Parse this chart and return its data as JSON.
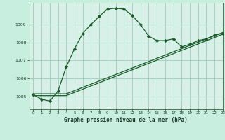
{
  "title": "Graphe pression niveau de la mer (hPa)",
  "background_color": "#c8eee0",
  "plot_bg_color": "#d8f0e8",
  "grid_color": "#99ccbb",
  "line_color": "#1a5c2a",
  "xlim": [
    -0.5,
    23
  ],
  "ylim": [
    1004.3,
    1010.2
  ],
  "xticks": [
    0,
    1,
    2,
    3,
    4,
    5,
    6,
    7,
    8,
    9,
    10,
    11,
    12,
    13,
    14,
    15,
    16,
    17,
    18,
    19,
    20,
    21,
    22,
    23
  ],
  "yticks": [
    1005,
    1006,
    1007,
    1008,
    1009
  ],
  "series1_x": [
    0,
    1,
    2,
    3,
    4,
    5,
    6,
    7,
    8,
    9,
    10,
    11,
    12,
    13,
    14,
    15,
    16,
    17,
    18,
    19,
    20,
    21,
    22,
    23
  ],
  "series1_y": [
    1005.1,
    1004.85,
    1004.75,
    1005.3,
    1006.65,
    1007.65,
    1008.5,
    1009.0,
    1009.45,
    1009.85,
    1009.9,
    1009.85,
    1009.5,
    1009.0,
    1008.35,
    1008.1,
    1008.1,
    1008.2,
    1007.75,
    1007.9,
    1008.1,
    1008.2,
    1008.4,
    1008.5
  ],
  "series2_x": [
    0,
    4,
    23
  ],
  "series2_y": [
    1005.05,
    1005.05,
    1008.45
  ],
  "series3_x": [
    0,
    4,
    23
  ],
  "series3_y": [
    1005.15,
    1005.15,
    1008.55
  ]
}
